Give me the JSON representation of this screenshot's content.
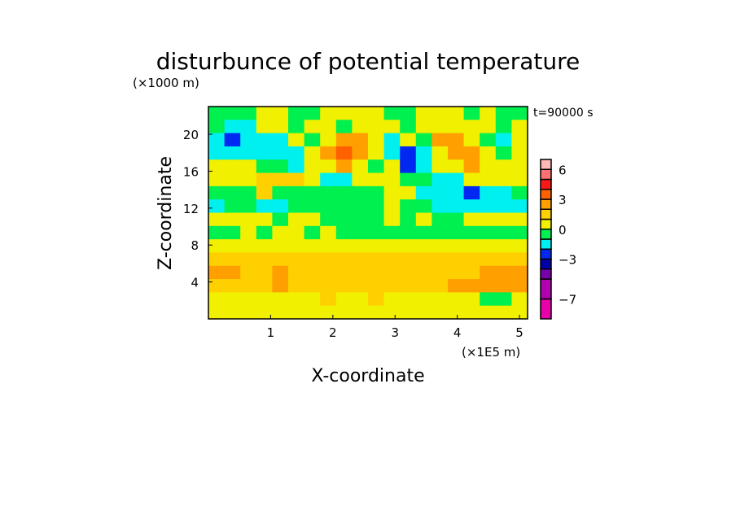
{
  "chart_data": {
    "type": "heatmap",
    "title": "disturbunce of potential temperature",
    "xlabel": "X-coordinate",
    "ylabel": "Z-coordinate",
    "x_unit": "(×1E5 m)",
    "y_unit": "(×1000 m)",
    "annotation": "t=90000 s",
    "xlim": [
      0,
      5.13
    ],
    "ylim": [
      0,
      23
    ],
    "x_ticks": [
      1,
      2,
      3,
      4,
      5
    ],
    "y_ticks": [
      4,
      8,
      12,
      16,
      20
    ],
    "colorbar": {
      "levels": [
        -9,
        -7,
        -5,
        -4,
        -3,
        -2,
        -1,
        0,
        1,
        2,
        3,
        4,
        5,
        6,
        7
      ],
      "colors": [
        "#e800a8",
        "#b000b0",
        "#7800a8",
        "#0000a8",
        "#0028f0",
        "#00f0f0",
        "#00f050",
        "#f0f000",
        "#ffd000",
        "#ffa000",
        "#ff6000",
        "#ff1818",
        "#ff7070",
        "#ffb8b8"
      ],
      "tick_labels": [
        "6",
        "3",
        "0",
        "-3",
        "-7"
      ],
      "tick_values": [
        6,
        3,
        0,
        -3,
        -7
      ]
    },
    "grid_note_rows_top_to_bottom": true,
    "z": [
      [
        -0.5,
        -0.5,
        -0.5,
        0.5,
        0.5,
        -0.5,
        -0.5,
        0.5,
        0.5,
        0.5,
        0.5,
        -0.5,
        -0.5,
        0.5,
        0.5,
        0.5,
        -0.5,
        0.5,
        -0.5,
        -0.5
      ],
      [
        -0.5,
        -1.5,
        -1.5,
        0.5,
        0.5,
        -0.5,
        0.5,
        0.5,
        -0.5,
        0.5,
        0.5,
        0.5,
        -0.5,
        0.5,
        0.5,
        0.5,
        0.5,
        0.5,
        -0.5,
        0.5
      ],
      [
        -1.5,
        -2.5,
        -1.5,
        -1.5,
        -1.5,
        0.5,
        -0.5,
        0.5,
        2.5,
        2.5,
        0.5,
        -1.5,
        0.5,
        -0.5,
        2.5,
        2.5,
        0.5,
        -0.5,
        -1.5,
        0.5
      ],
      [
        -1.5,
        -1.5,
        -1.5,
        -1.5,
        -1.5,
        -1.5,
        0.5,
        2.5,
        3.5,
        2.5,
        0.5,
        -1.5,
        -2.5,
        -1.5,
        0.5,
        2.5,
        2.5,
        0.5,
        -0.5,
        0.5
      ],
      [
        0.5,
        0.5,
        0.5,
        -0.5,
        -0.5,
        -1.5,
        0.5,
        0.5,
        2.5,
        0.5,
        -0.5,
        0.5,
        -2.5,
        -1.5,
        0.5,
        0.5,
        2.5,
        0.5,
        0.5,
        0.5
      ],
      [
        0.5,
        0.5,
        0.5,
        1.5,
        1.5,
        1.5,
        0.5,
        -1.5,
        -1.5,
        0.5,
        0.5,
        0.5,
        -0.5,
        -0.5,
        -1.5,
        -1.5,
        0.5,
        0.5,
        0.5,
        0.5
      ],
      [
        -0.5,
        -0.5,
        -0.5,
        1.5,
        -0.5,
        -0.5,
        -0.5,
        -0.5,
        -0.5,
        -0.5,
        -0.5,
        0.5,
        0.5,
        -1.5,
        -1.5,
        -1.5,
        -2.5,
        -1.5,
        -1.5,
        -0.5
      ],
      [
        -1.5,
        -0.5,
        -0.5,
        -1.5,
        -1.5,
        -0.5,
        -0.5,
        -0.5,
        -0.5,
        -0.5,
        -0.5,
        0.5,
        -0.5,
        -0.5,
        -1.5,
        -1.5,
        -1.5,
        -1.5,
        -1.5,
        -1.5
      ],
      [
        0.5,
        0.5,
        0.5,
        0.5,
        -0.5,
        0.5,
        0.5,
        -0.5,
        -0.5,
        -0.5,
        -0.5,
        0.5,
        -0.5,
        0.5,
        -0.5,
        -0.5,
        0.5,
        0.5,
        0.5,
        0.5
      ],
      [
        -0.5,
        -0.5,
        0.5,
        -0.5,
        0.5,
        0.5,
        -0.5,
        0.5,
        -0.5,
        -0.5,
        -0.5,
        -0.5,
        -0.5,
        -0.5,
        -0.5,
        -0.5,
        -0.5,
        -0.5,
        -0.5,
        -0.5
      ],
      [
        0.5,
        0.5,
        0.5,
        0.5,
        0.5,
        0.5,
        0.5,
        0.5,
        0.5,
        0.5,
        0.5,
        0.5,
        0.5,
        0.5,
        0.5,
        0.5,
        0.5,
        0.5,
        0.5,
        0.5
      ],
      [
        1.5,
        1.5,
        1.5,
        1.5,
        1.5,
        1.5,
        1.5,
        1.5,
        1.5,
        1.5,
        1.5,
        1.5,
        1.5,
        1.5,
        1.5,
        1.5,
        1.5,
        1.5,
        1.5,
        1.5
      ],
      [
        2.5,
        2.5,
        1.5,
        1.5,
        2.5,
        1.5,
        1.5,
        1.5,
        1.5,
        1.5,
        1.5,
        1.5,
        1.5,
        1.5,
        1.5,
        1.5,
        1.5,
        2.5,
        2.5,
        2.5
      ],
      [
        1.5,
        1.5,
        1.5,
        1.5,
        2.5,
        1.5,
        1.5,
        1.5,
        1.5,
        1.5,
        1.5,
        1.5,
        1.5,
        1.5,
        1.5,
        2.5,
        2.5,
        2.5,
        2.5,
        2.5
      ],
      [
        0.5,
        0.5,
        0.5,
        0.5,
        0.5,
        0.5,
        0.5,
        1.5,
        0.5,
        0.5,
        1.5,
        0.5,
        0.5,
        0.5,
        0.5,
        0.5,
        0.5,
        -0.5,
        -0.5,
        0.5
      ],
      [
        0.5,
        0.5,
        0.5,
        0.5,
        0.5,
        0.5,
        0.5,
        0.5,
        0.5,
        0.5,
        0.5,
        0.5,
        0.5,
        0.5,
        0.5,
        0.5,
        0.5,
        0.5,
        0.5,
        0.5
      ]
    ]
  }
}
